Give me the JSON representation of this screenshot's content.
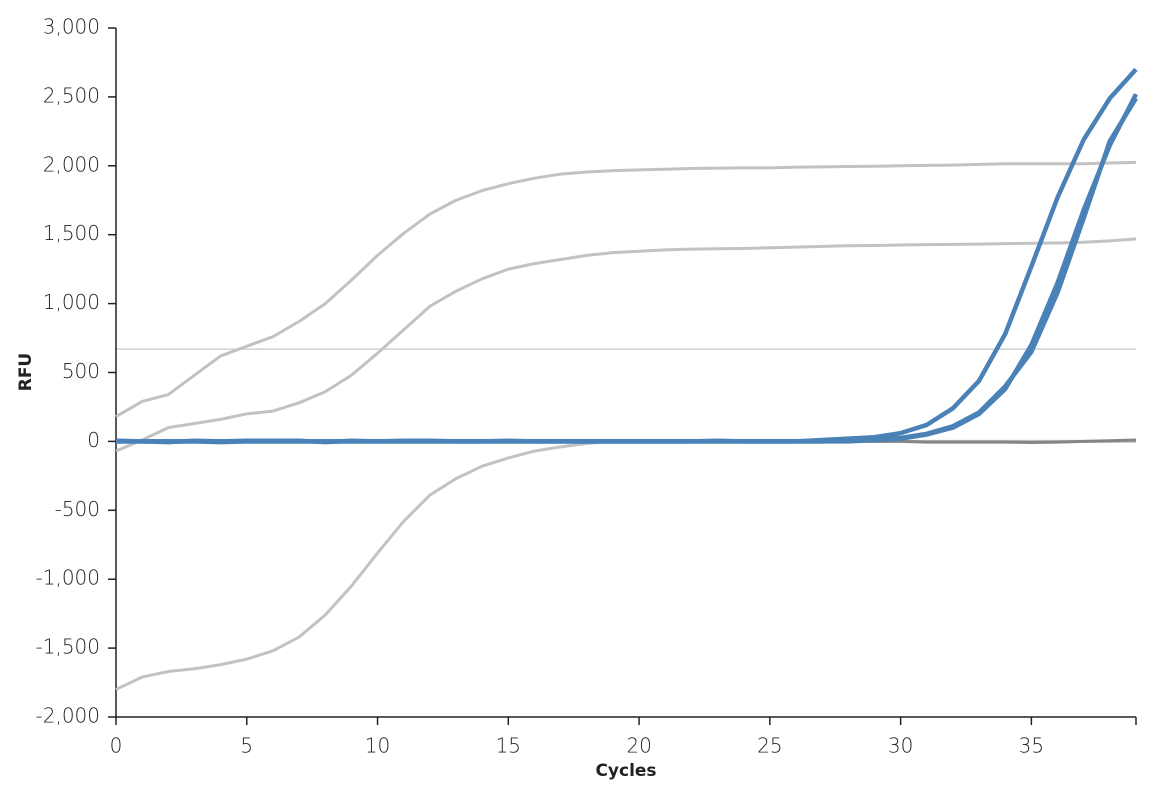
{
  "chart_data": {
    "type": "line",
    "x_label": "Cycles",
    "y_label": "RFU",
    "x": [
      0,
      1,
      2,
      3,
      4,
      5,
      6,
      7,
      8,
      9,
      10,
      11,
      12,
      13,
      14,
      15,
      16,
      17,
      18,
      19,
      20,
      21,
      22,
      23,
      24,
      25,
      26,
      27,
      28,
      29,
      30,
      31,
      32,
      33,
      34,
      35,
      36,
      37,
      38,
      39
    ],
    "series": [
      {
        "color": "#c2c2c2",
        "values": [
          180,
          290,
          340,
          480,
          620,
          690,
          760,
          870,
          1000,
          1170,
          1350,
          1510,
          1650,
          1750,
          1820,
          1870,
          1910,
          1940,
          1955,
          1965,
          1970,
          1975,
          1980,
          1983,
          1985,
          1985,
          1990,
          1992,
          1995,
          1997,
          2000,
          2003,
          2005,
          2010,
          2015,
          2015,
          2015,
          2015,
          2020,
          2025
        ]
      },
      {
        "color": "#c2c2c2",
        "values": [
          -70,
          10,
          100,
          130,
          160,
          200,
          220,
          280,
          360,
          480,
          640,
          810,
          980,
          1090,
          1180,
          1250,
          1290,
          1320,
          1350,
          1370,
          1380,
          1390,
          1395,
          1398,
          1400,
          1405,
          1410,
          1415,
          1420,
          1422,
          1425,
          1428,
          1430,
          1432,
          1435,
          1438,
          1440,
          1445,
          1455,
          1470
        ]
      },
      {
        "color": "#c2c2c2",
        "values": [
          -1800,
          -1710,
          -1670,
          -1650,
          -1620,
          -1580,
          -1520,
          -1420,
          -1260,
          -1050,
          -810,
          -580,
          -390,
          -270,
          -180,
          -120,
          -70,
          -40,
          -15,
          0,
          5,
          5,
          5,
          5,
          5,
          5,
          0,
          0,
          0,
          0,
          0,
          0,
          0,
          0,
          0,
          0,
          0,
          0,
          0,
          0
        ]
      },
      {
        "color": "#858585",
        "values": [
          0,
          0,
          0,
          0,
          0,
          0,
          0,
          0,
          0,
          0,
          0,
          0,
          0,
          0,
          0,
          0,
          0,
          0,
          0,
          0,
          0,
          0,
          0,
          0,
          0,
          0,
          0,
          0,
          0,
          0,
          0,
          -5,
          -5,
          -5,
          -5,
          -8,
          -5,
          0,
          5,
          10
        ]
      },
      {
        "color": "#4a81b6",
        "values": [
          5,
          0,
          -5,
          5,
          0,
          5,
          5,
          5,
          -5,
          5,
          0,
          5,
          5,
          0,
          0,
          5,
          0,
          0,
          0,
          0,
          0,
          0,
          0,
          5,
          0,
          0,
          0,
          10,
          20,
          30,
          60,
          120,
          240,
          440,
          780,
          1270,
          1770,
          2190,
          2490,
          2700
        ]
      },
      {
        "color": "#4a81b6",
        "values": [
          0,
          0,
          0,
          0,
          0,
          0,
          0,
          0,
          0,
          0,
          0,
          0,
          0,
          0,
          0,
          0,
          0,
          0,
          0,
          0,
          0,
          0,
          0,
          0,
          0,
          0,
          0,
          0,
          0,
          10,
          20,
          50,
          100,
          200,
          380,
          700,
          1150,
          1680,
          2150,
          2520
        ]
      },
      {
        "color": "#4a81b6",
        "values": [
          0,
          0,
          0,
          0,
          -5,
          0,
          0,
          0,
          0,
          0,
          0,
          0,
          0,
          0,
          0,
          0,
          0,
          0,
          0,
          0,
          0,
          0,
          0,
          0,
          0,
          0,
          0,
          0,
          5,
          15,
          25,
          55,
          110,
          210,
          400,
          650,
          1080,
          1620,
          2180,
          2490
        ]
      }
    ],
    "threshold": 670,
    "xlim": [
      0,
      39
    ],
    "xticks": [
      0,
      5,
      10,
      15,
      20,
      25,
      30,
      35
    ],
    "ylim": [
      -2000,
      3000
    ],
    "yticks": [
      {
        "value": -2000,
        "label": "-2,000"
      },
      {
        "value": -1500,
        "label": "-1,500"
      },
      {
        "value": -1000,
        "label": "-1,000"
      },
      -500,
      0,
      500,
      {
        "value": 1000,
        "label": "1,000"
      },
      {
        "value": 1500,
        "label": "1,500"
      },
      {
        "value": 2000,
        "label": "2,000"
      },
      {
        "value": 2500,
        "label": "2,500"
      },
      {
        "value": 3000,
        "label": "3,000"
      }
    ]
  }
}
